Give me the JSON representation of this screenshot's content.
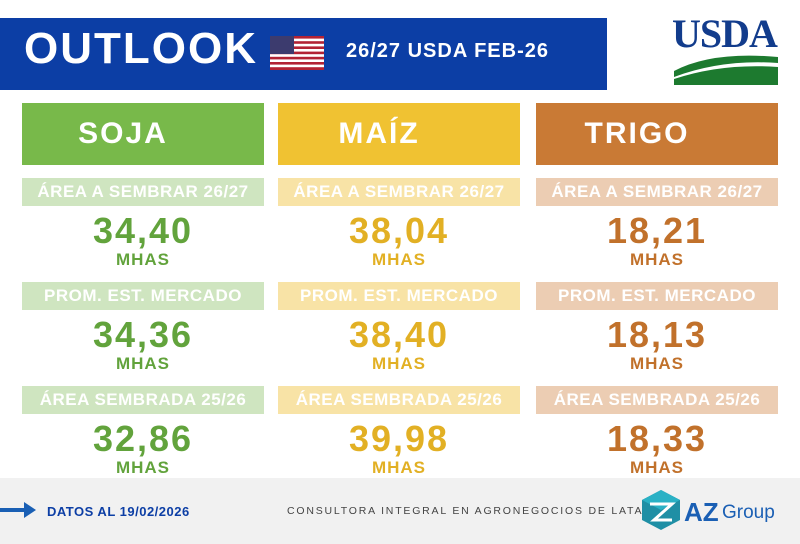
{
  "header": {
    "title": "OUTLOOK",
    "subtitle": "26/27 USDA FEB-26",
    "logo": "USDA"
  },
  "columns": [
    {
      "name": "SOJA",
      "rows": [
        {
          "label": "ÁREA A SEMBRAR 26/27",
          "value": "34,40",
          "unit": "MHAS"
        },
        {
          "label": "PROM. EST. MERCADO",
          "value": "34,36",
          "unit": "MHAS"
        },
        {
          "label": "ÁREA SEMBRADA 25/26",
          "value": "32,86",
          "unit": "MHAS"
        }
      ]
    },
    {
      "name": "MAÍZ",
      "rows": [
        {
          "label": "ÁREA A SEMBRAR 26/27",
          "value": "38,04",
          "unit": "MHAS"
        },
        {
          "label": "PROM. EST. MERCADO",
          "value": "38,40",
          "unit": "MHAS"
        },
        {
          "label": "ÁREA SEMBRADA 25/26",
          "value": "39,98",
          "unit": "MHAS"
        }
      ]
    },
    {
      "name": "TRIGO",
      "rows": [
        {
          "label": "ÁREA A SEMBRAR 26/27",
          "value": "18,21",
          "unit": "MHAS"
        },
        {
          "label": "PROM. EST. MERCADO",
          "value": "18,13",
          "unit": "MHAS"
        },
        {
          "label": "ÁREA SEMBRADA 25/26",
          "value": "18,33",
          "unit": "MHAS"
        }
      ]
    }
  ],
  "footer": {
    "date": "DATOS AL 19/02/2026",
    "tagline": "CONSULTORA INTEGRAL EN AGRONEGOCIOS DE LATAM",
    "brand": "AZ",
    "brand_suffix": "Group"
  }
}
